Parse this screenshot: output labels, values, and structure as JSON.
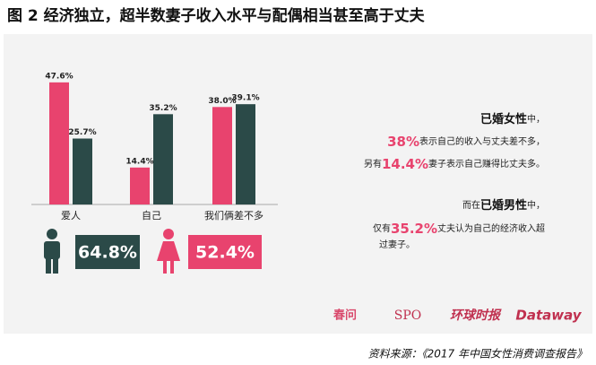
{
  "title": "图 2  经济独立，超半数妻子收入水平与配偶相当甚至高于丈夫",
  "chart_data": {
    "type": "bar",
    "categories": [
      "爱人",
      "自己",
      "我们俩差不多"
    ],
    "series": [
      {
        "color": "#e8436e",
        "values": [
          47.6,
          14.4,
          38.0
        ],
        "value_labels": [
          "47.6%",
          "14.4%",
          "38.0%"
        ]
      },
      {
        "color": "#2b4a48",
        "values": [
          25.7,
          35.2,
          39.1
        ],
        "value_labels": [
          "25.7%",
          "35.2%",
          "39.1%"
        ]
      }
    ]
  },
  "stats": [
    {
      "label": "64.8%",
      "color": "#2b4a48"
    },
    {
      "label": "52.4%",
      "color": "#e8436e"
    }
  ],
  "notes": [
    [
      {
        "text": "已婚女性",
        "style": "bold"
      },
      {
        "text": "中，",
        "style": "plain"
      }
    ],
    [
      {
        "text": "38%",
        "style": "pink"
      },
      {
        "text": "表示自己的收入与丈夫差不多，",
        "style": "plain"
      }
    ],
    [
      {
        "text": "另有",
        "style": "plain"
      },
      {
        "text": "14.4%",
        "style": "pink"
      },
      {
        "text": "妻子表示自己赚得比丈夫多。",
        "style": "plain"
      }
    ],
    [
      {
        "text": "而在",
        "style": "plain"
      },
      {
        "text": "已婚男性",
        "style": "bold"
      },
      {
        "text": "中，",
        "style": "plain"
      }
    ],
    [
      {
        "text": "仅有",
        "style": "plain"
      },
      {
        "text": "35.2%",
        "style": "pink"
      },
      {
        "text": "丈夫认为自己的经济收入超",
        "style": "plain"
      }
    ],
    [
      {
        "text": "过妻子。",
        "style": "plain"
      }
    ]
  ],
  "logos": [
    "春问",
    "SPO",
    "环球时报",
    "Dataway"
  ],
  "source": "资料来源：《2017 年中国女性消费调查报告》"
}
